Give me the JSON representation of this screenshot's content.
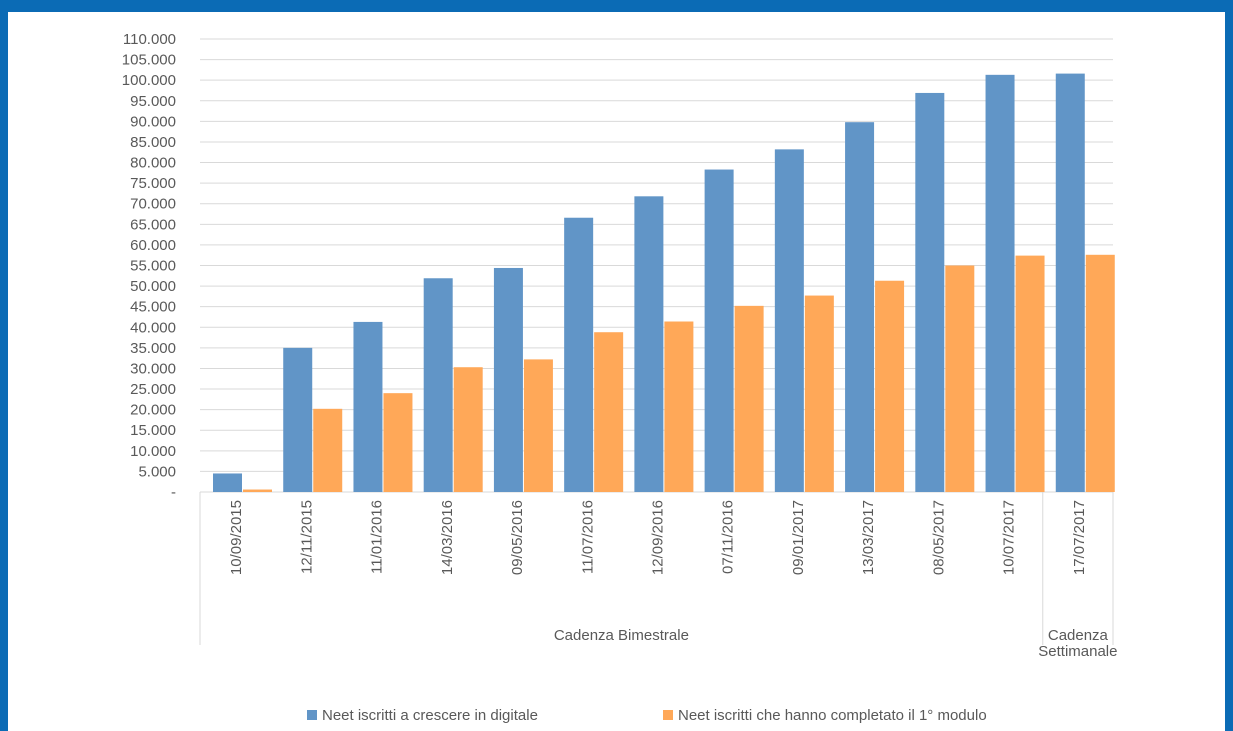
{
  "colors": {
    "blue": "#6195c7",
    "orange": "#ffa858",
    "frame": "#0b6bb5"
  },
  "chart_data": {
    "type": "bar",
    "categories": [
      "10/09/2015",
      "12/11/2015",
      "11/01/2016",
      "14/03/2016",
      "09/05/2016",
      "11/07/2016",
      "12/09/2016",
      "07/11/2016",
      "09/01/2017",
      "13/03/2017",
      "08/05/2017",
      "10/07/2017",
      "17/07/2017"
    ],
    "series": [
      {
        "name": "Neet iscritti a crescere in digitale",
        "color": "#6195c7",
        "values": [
          4500,
          35000,
          41300,
          51900,
          54400,
          66600,
          71800,
          78300,
          83200,
          89800,
          96900,
          101300,
          101600
        ]
      },
      {
        "name": "Neet iscritti che hanno completato il 1° modulo",
        "color": "#ffa858",
        "values": [
          600,
          20200,
          24000,
          30300,
          32200,
          38800,
          41400,
          45200,
          47700,
          51300,
          55000,
          57400,
          57600
        ]
      }
    ],
    "ylim": [
      0,
      110000
    ],
    "y_ticks": [
      "-",
      "5.000",
      "10.000",
      "15.000",
      "20.000",
      "25.000",
      "30.000",
      "35.000",
      "40.000",
      "45.000",
      "50.000",
      "55.000",
      "60.000",
      "65.000",
      "70.000",
      "75.000",
      "80.000",
      "85.000",
      "90.000",
      "95.000",
      "100.000",
      "105.000",
      "110.000"
    ],
    "groups": [
      {
        "label": "Cadenza Bimestrale",
        "count": 12
      },
      {
        "label_lines": [
          "Cadenza",
          "Settimanale"
        ],
        "count": 1
      }
    ],
    "grid": true,
    "legend": "bottom"
  }
}
